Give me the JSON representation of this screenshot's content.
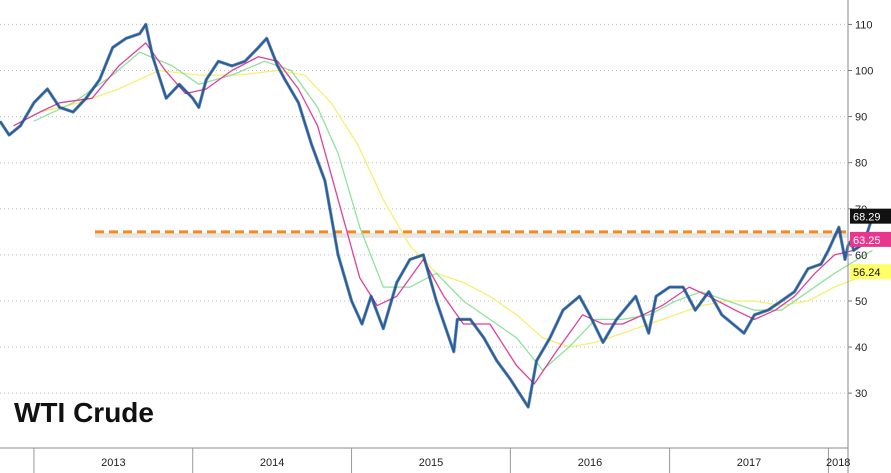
{
  "chart_data": {
    "type": "line",
    "title": "WTI Crude",
    "xlabel": "",
    "ylabel": "",
    "x_ticks": [
      "2013",
      "2014",
      "2015",
      "2016",
      "2017",
      "2018"
    ],
    "y_ticks": [
      30,
      40,
      50,
      60,
      70,
      80,
      90,
      100,
      110
    ],
    "ylim": [
      22,
      114
    ],
    "xlim": [
      "2012-10-15",
      "2018-02-15"
    ],
    "grid": "horizontal-dotted",
    "reference_line": {
      "value": 65,
      "color": "#f28a1e",
      "style": "dashed"
    },
    "end_labels": [
      {
        "text": "68.29",
        "series": "price",
        "bg": "#111111",
        "fg": "#ffffff"
      },
      {
        "text": "63.25",
        "series": "ma50",
        "bg": "#e8368f",
        "fg": "#ffffff"
      },
      {
        "text": "56.24",
        "series": "ma200",
        "bg": "#ffff66",
        "fg": "#111111"
      }
    ],
    "series": [
      {
        "key": "price",
        "color": "#1c5fa8",
        "points": [
          [
            "2012-10-15",
            89
          ],
          [
            "2012-11-05",
            86
          ],
          [
            "2012-12-01",
            88
          ],
          [
            "2013-01-01",
            93
          ],
          [
            "2013-02-01",
            96
          ],
          [
            "2013-03-01",
            92
          ],
          [
            "2013-04-01",
            91
          ],
          [
            "2013-05-01",
            94
          ],
          [
            "2013-06-01",
            98
          ],
          [
            "2013-07-01",
            105
          ],
          [
            "2013-08-01",
            107
          ],
          [
            "2013-09-01",
            108
          ],
          [
            "2013-09-15",
            110
          ],
          [
            "2013-10-01",
            103
          ],
          [
            "2013-11-01",
            94
          ],
          [
            "2013-12-01",
            97
          ],
          [
            "2014-01-01",
            94
          ],
          [
            "2014-01-15",
            92
          ],
          [
            "2014-02-01",
            98
          ],
          [
            "2014-03-01",
            102
          ],
          [
            "2014-04-01",
            101
          ],
          [
            "2014-05-01",
            102
          ],
          [
            "2014-06-01",
            105
          ],
          [
            "2014-06-20",
            107
          ],
          [
            "2014-07-15",
            101
          ],
          [
            "2014-08-01",
            98
          ],
          [
            "2014-09-01",
            93
          ],
          [
            "2014-10-01",
            84
          ],
          [
            "2014-11-01",
            76
          ],
          [
            "2014-12-01",
            60
          ],
          [
            "2015-01-01",
            50
          ],
          [
            "2015-01-25",
            45
          ],
          [
            "2015-02-15",
            51
          ],
          [
            "2015-03-15",
            44
          ],
          [
            "2015-04-15",
            54
          ],
          [
            "2015-05-15",
            59
          ],
          [
            "2015-06-15",
            60
          ],
          [
            "2015-07-15",
            50
          ],
          [
            "2015-08-24",
            39
          ],
          [
            "2015-09-01",
            46
          ],
          [
            "2015-10-01",
            46
          ],
          [
            "2015-11-01",
            42
          ],
          [
            "2015-12-01",
            37
          ],
          [
            "2016-01-01",
            33
          ],
          [
            "2016-02-11",
            27
          ],
          [
            "2016-03-01",
            37
          ],
          [
            "2016-04-01",
            42
          ],
          [
            "2016-05-01",
            48
          ],
          [
            "2016-06-08",
            51
          ],
          [
            "2016-07-01",
            47
          ],
          [
            "2016-08-01",
            41
          ],
          [
            "2016-09-01",
            46
          ],
          [
            "2016-10-15",
            51
          ],
          [
            "2016-11-14",
            43
          ],
          [
            "2016-12-01",
            51
          ],
          [
            "2017-01-01",
            53
          ],
          [
            "2017-02-01",
            53
          ],
          [
            "2017-03-01",
            48
          ],
          [
            "2017-04-01",
            52
          ],
          [
            "2017-05-01",
            47
          ],
          [
            "2017-06-21",
            43
          ],
          [
            "2017-07-15",
            47
          ],
          [
            "2017-08-15",
            48
          ],
          [
            "2017-09-15",
            50
          ],
          [
            "2017-10-15",
            52
          ],
          [
            "2017-11-15",
            57
          ],
          [
            "2017-12-15",
            58
          ],
          [
            "2018-01-01",
            61
          ],
          [
            "2018-01-25",
            66
          ],
          [
            "2018-02-08",
            59
          ],
          [
            "2018-02-15",
            62
          ],
          [
            "2018-02-22",
            63
          ],
          [
            "2018-02-28",
            61
          ],
          [
            "2018-03-15",
            62
          ],
          [
            "2018-04-01",
            65
          ],
          [
            "2018-04-12",
            68.29
          ]
        ]
      },
      {
        "key": "ma50",
        "color": "#e0409a",
        "points": [
          [
            "2012-11-15",
            88
          ],
          [
            "2013-01-15",
            91
          ],
          [
            "2013-03-01",
            93
          ],
          [
            "2013-05-15",
            94
          ],
          [
            "2013-07-15",
            101
          ],
          [
            "2013-09-15",
            106
          ],
          [
            "2013-10-30",
            100
          ],
          [
            "2013-12-15",
            95
          ],
          [
            "2014-02-01",
            96
          ],
          [
            "2014-04-01",
            100
          ],
          [
            "2014-06-01",
            103
          ],
          [
            "2014-07-15",
            102
          ],
          [
            "2014-09-01",
            96
          ],
          [
            "2014-10-15",
            88
          ],
          [
            "2014-12-01",
            72
          ],
          [
            "2015-01-20",
            55
          ],
          [
            "2015-03-01",
            49
          ],
          [
            "2015-04-15",
            51
          ],
          [
            "2015-06-15",
            59
          ],
          [
            "2015-08-01",
            51
          ],
          [
            "2015-09-15",
            45
          ],
          [
            "2015-11-15",
            45
          ],
          [
            "2016-01-15",
            36
          ],
          [
            "2016-02-25",
            32
          ],
          [
            "2016-04-15",
            39
          ],
          [
            "2016-06-15",
            47
          ],
          [
            "2016-08-01",
            45
          ],
          [
            "2016-09-15",
            45
          ],
          [
            "2016-11-01",
            47
          ],
          [
            "2016-12-15",
            49
          ],
          [
            "2017-02-15",
            53
          ],
          [
            "2017-04-01",
            51
          ],
          [
            "2017-06-01",
            48
          ],
          [
            "2017-07-15",
            46
          ],
          [
            "2017-09-01",
            48
          ],
          [
            "2017-10-15",
            51
          ],
          [
            "2017-12-01",
            56
          ],
          [
            "2018-01-15",
            60
          ],
          [
            "2018-03-01",
            61
          ],
          [
            "2018-04-12",
            63.25
          ]
        ]
      },
      {
        "key": "ma100",
        "color": "#8fe39b",
        "points": [
          [
            "2013-01-01",
            89
          ],
          [
            "2013-04-01",
            93
          ],
          [
            "2013-07-01",
            99
          ],
          [
            "2013-09-01",
            104
          ],
          [
            "2013-11-15",
            101
          ],
          [
            "2014-01-15",
            97
          ],
          [
            "2014-04-01",
            99
          ],
          [
            "2014-06-15",
            102
          ],
          [
            "2014-08-15",
            100
          ],
          [
            "2014-10-15",
            92
          ],
          [
            "2014-12-01",
            82
          ],
          [
            "2015-01-20",
            66
          ],
          [
            "2015-03-15",
            53
          ],
          [
            "2015-05-15",
            53
          ],
          [
            "2015-07-15",
            56
          ],
          [
            "2015-09-15",
            50
          ],
          [
            "2015-11-15",
            46
          ],
          [
            "2016-01-15",
            42
          ],
          [
            "2016-03-15",
            35
          ],
          [
            "2016-05-15",
            40
          ],
          [
            "2016-07-15",
            46
          ],
          [
            "2016-09-15",
            46
          ],
          [
            "2016-11-15",
            47
          ],
          [
            "2017-01-15",
            50
          ],
          [
            "2017-03-15",
            52
          ],
          [
            "2017-05-15",
            50
          ],
          [
            "2017-07-15",
            48
          ],
          [
            "2017-09-15",
            48
          ],
          [
            "2017-11-15",
            52
          ],
          [
            "2018-01-15",
            56
          ],
          [
            "2018-04-12",
            61
          ]
        ]
      },
      {
        "key": "ma200",
        "color": "#f6ef72",
        "points": [
          [
            "2013-01-15",
            91
          ],
          [
            "2013-04-15",
            93
          ],
          [
            "2013-07-15",
            96
          ],
          [
            "2013-10-15",
            100
          ],
          [
            "2014-01-15",
            99
          ],
          [
            "2014-04-15",
            99
          ],
          [
            "2014-07-15",
            100
          ],
          [
            "2014-09-15",
            99
          ],
          [
            "2014-11-15",
            93
          ],
          [
            "2015-01-15",
            84
          ],
          [
            "2015-03-15",
            72
          ],
          [
            "2015-05-15",
            62
          ],
          [
            "2015-07-15",
            56
          ],
          [
            "2015-09-15",
            54
          ],
          [
            "2015-11-15",
            51
          ],
          [
            "2016-01-15",
            47
          ],
          [
            "2016-03-15",
            42
          ],
          [
            "2016-05-15",
            40
          ],
          [
            "2016-07-15",
            41
          ],
          [
            "2016-09-15",
            43
          ],
          [
            "2016-11-15",
            45
          ],
          [
            "2017-01-15",
            47
          ],
          [
            "2017-03-15",
            49
          ],
          [
            "2017-05-15",
            50
          ],
          [
            "2017-07-15",
            50
          ],
          [
            "2017-09-15",
            49
          ],
          [
            "2017-11-15",
            50
          ],
          [
            "2018-01-15",
            53
          ],
          [
            "2018-04-12",
            56.24
          ]
        ]
      }
    ]
  }
}
